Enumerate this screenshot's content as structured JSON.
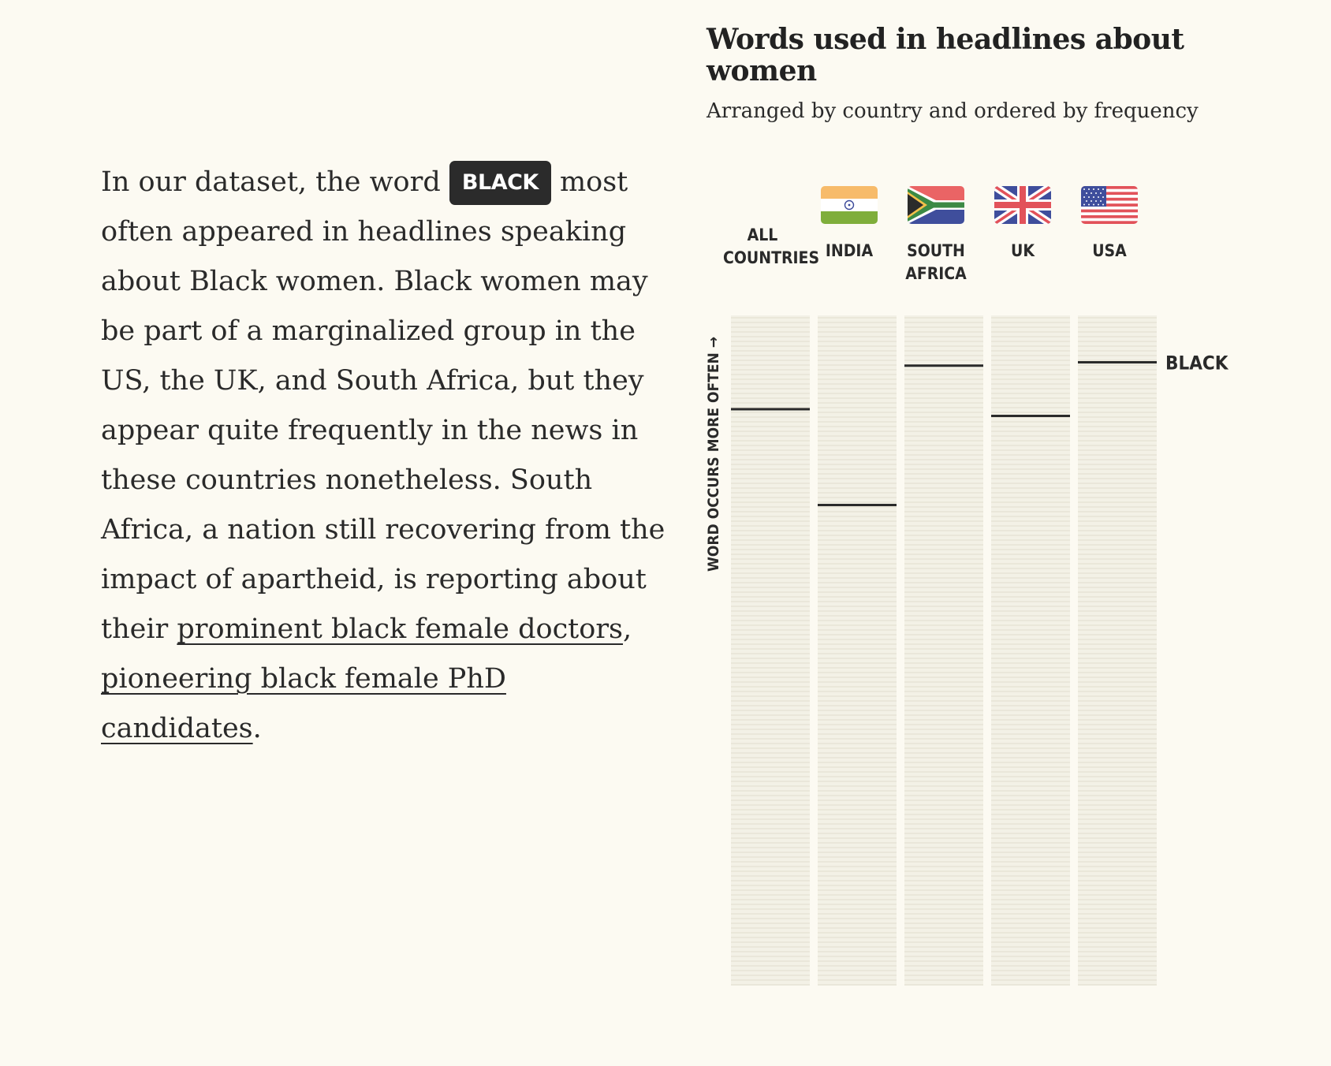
{
  "article": {
    "text_before": "In our dataset, the word ",
    "highlight_word": "BLACK",
    "text_middle": " most often appeared in headlines speaking about Black women. Black women may be part of a marginalized group in the US, the UK, and South Africa, but they appear quite frequently in the news in these countries nonetheless. South Africa, a nation still recovering from the impact of apartheid, is reporting about their ",
    "link1": "prominent black female doctors",
    "sep": ",",
    "link2": "pioneering black female PhD candidates",
    "end": "."
  },
  "chart_data": {
    "type": "strip",
    "title": "Words used in headlines about women",
    "subtitle": "Arranged by country and ordered by frequency",
    "y_axis_label": "WORD OCCURS MORE OFTEN →",
    "highlight_word": "BLACK",
    "categories": [
      "ALL\nCOUNTRIES",
      "INDIA",
      "SOUTH\nAFRICA",
      "UK",
      "USA"
    ],
    "flags": [
      "none",
      "india-flag",
      "south-africa-flag",
      "uk-flag",
      "usa-flag"
    ],
    "series": [
      {
        "name": "BLACK",
        "rank_fraction_from_top": [
          0.14,
          0.283,
          0.075,
          0.15,
          0.07
        ]
      }
    ],
    "colors": {
      "column_fill": "#f3f1e6",
      "column_stripe": "#eae7da",
      "marker": "#2a2a2a"
    }
  }
}
